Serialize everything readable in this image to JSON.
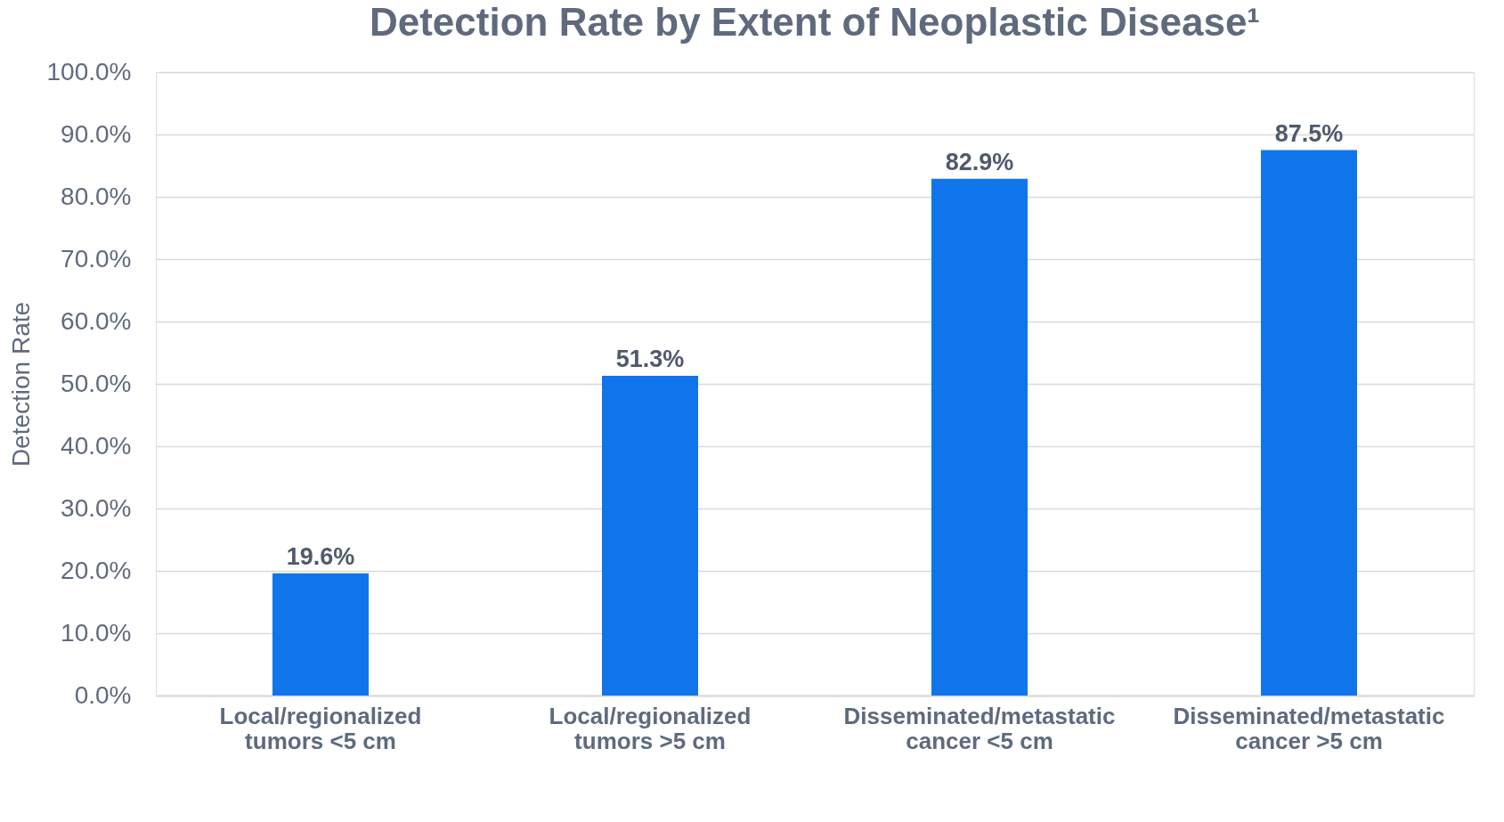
{
  "chart_data": {
    "type": "bar",
    "title": "Detection Rate by Extent of Neoplastic Disease¹",
    "ylabel": "Detection Rate",
    "categories": [
      "Local/regionalized\ntumors <5 cm",
      "Local/regionalized\ntumors >5 cm",
      "Disseminated/metastatic\ncancer <5 cm",
      "Disseminated/metastatic\ncancer >5 cm"
    ],
    "values": [
      19.6,
      51.3,
      82.9,
      87.5
    ],
    "value_labels": [
      "19.6%",
      "51.3%",
      "82.9%",
      "87.5%"
    ],
    "color": "#1075ea",
    "ylim": [
      0,
      100
    ],
    "yticks": [
      {
        "value": 0,
        "label": "0.0%"
      },
      {
        "value": 10,
        "label": "10.0%"
      },
      {
        "value": 20,
        "label": "20.0%"
      },
      {
        "value": 30,
        "label": "30.0%"
      },
      {
        "value": 40,
        "label": "40.0%"
      },
      {
        "value": 50,
        "label": "50.0%"
      },
      {
        "value": 60,
        "label": "60.0%"
      },
      {
        "value": 70,
        "label": "70.0%"
      },
      {
        "value": 80,
        "label": "80.0%"
      },
      {
        "value": 90,
        "label": "90.0%"
      },
      {
        "value": 100,
        "label": "100.0%"
      }
    ],
    "grid": "y"
  }
}
